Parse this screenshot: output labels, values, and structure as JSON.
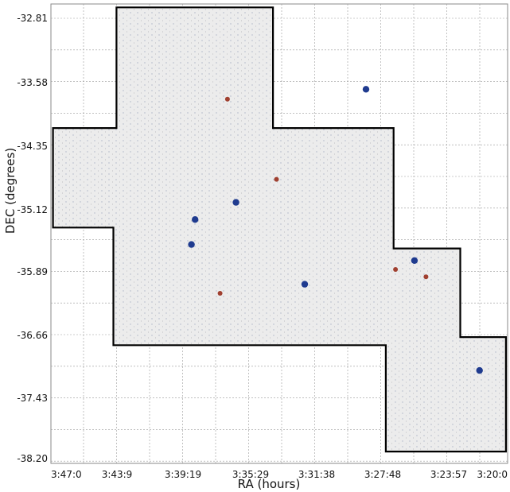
{
  "chart_data": {
    "type": "scatter",
    "title": "",
    "xlabel": "RA (hours)",
    "ylabel": "DEC (degrees)",
    "x_tick_labels": [
      "3:47:0",
      "3:43:9",
      "3:39:19",
      "3:35:29",
      "3:31:38",
      "3:27:48",
      "3:23:57",
      "3:20:0"
    ],
    "y_tick_labels": [
      "-32.81",
      "-33.58",
      "-34.35",
      "-35.12",
      "-35.89",
      "-36.66",
      "-37.43",
      "-38.20"
    ],
    "x_tick_values_hours": [
      3.7833,
      3.7192,
      3.6553,
      3.5914,
      3.5272,
      3.4633,
      3.3992,
      3.3333
    ],
    "y_tick_values_deg": [
      -32.81,
      -33.58,
      -34.35,
      -35.12,
      -35.89,
      -36.66,
      -37.43,
      -38.2
    ],
    "xlim_hours": [
      3.7833,
      3.3333
    ],
    "ylim_deg": [
      -38.2,
      -32.81
    ],
    "grid": true,
    "colors": {
      "field": "#ececec",
      "outline": "#000000",
      "grid": "#9a9a9a",
      "bright_source": "#1f3b8f",
      "red_source": "#a04030"
    },
    "footprint_outline_deg": [
      {
        "ra_h": 3.7197,
        "dec": -32.68
      },
      {
        "ra_h": 3.5697,
        "dec": -32.68
      },
      {
        "ra_h": 3.5697,
        "dec": -34.13
      },
      {
        "ra_h": 3.4527,
        "dec": -34.13
      },
      {
        "ra_h": 3.4527,
        "dec": -35.6
      },
      {
        "ra_h": 3.3863,
        "dec": -35.6
      },
      {
        "ra_h": 3.3863,
        "dec": -36.68
      },
      {
        "ra_h": 3.3352,
        "dec": -36.68
      },
      {
        "ra_h": 3.3352,
        "dec": -38.11
      },
      {
        "ra_h": 3.4603,
        "dec": -38.11
      },
      {
        "ra_h": 3.4603,
        "dec": -36.78
      },
      {
        "ra_h": 3.7227,
        "dec": -36.78
      },
      {
        "ra_h": 3.7227,
        "dec": -35.34
      },
      {
        "ra_h": 3.7813,
        "dec": -35.34
      },
      {
        "ra_h": 3.7813,
        "dec": -34.13
      },
      {
        "ra_h": 3.7197,
        "dec": -34.13
      }
    ],
    "bright_sources_deg": [
      {
        "ra_h": 3.6439,
        "dec": -35.24,
        "color": "blue"
      },
      {
        "ra_h": 3.6473,
        "dec": -35.55,
        "color": "blue"
      },
      {
        "ra_h": 3.5388,
        "dec": -36.04,
        "color": "blue"
      },
      {
        "ra_h": 3.4325,
        "dec": -35.75,
        "color": "blue"
      },
      {
        "ra_h": 3.3647,
        "dec": -37.09,
        "color": "blue"
      },
      {
        "ra_h": 3.4795,
        "dec": -33.66,
        "color": "blue"
      },
      {
        "ra_h": 3.6052,
        "dec": -35.03,
        "color": "blue"
      },
      {
        "ra_h": 3.5663,
        "dec": -34.75,
        "color": "red"
      },
      {
        "ra_h": 3.4213,
        "dec": -35.95,
        "color": "red"
      },
      {
        "ra_h": 3.6133,
        "dec": -33.78,
        "color": "red"
      },
      {
        "ra_h": 3.4509,
        "dec": -35.86,
        "color": "red"
      },
      {
        "ra_h": 3.6203,
        "dec": -36.15,
        "color": "red"
      }
    ]
  }
}
